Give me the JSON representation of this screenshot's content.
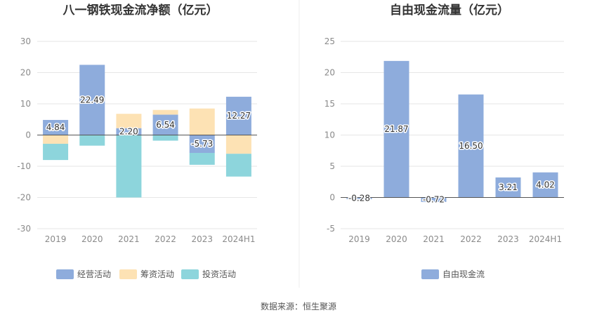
{
  "source": "数据来源：恒生聚源",
  "chart_data": [
    {
      "type": "bar",
      "stacked": true,
      "title": "八一钢铁现金流净额（亿元）",
      "categories": [
        "2019",
        "2020",
        "2021",
        "2022",
        "2023",
        "2024H1"
      ],
      "ylim": [
        -30,
        30
      ],
      "yticks": [
        30,
        20,
        10,
        0,
        -10,
        -20,
        -30
      ],
      "grid": true,
      "legend_position": "bottom",
      "series": [
        {
          "name": "经营活动",
          "color": "#8eacdc",
          "values": [
            4.84,
            22.49,
            2.2,
            6.54,
            -5.73,
            12.27
          ],
          "labeled": true
        },
        {
          "name": "筹资活动",
          "color": "#fde2b4",
          "values": [
            -2.8,
            0,
            4.6,
            1.5,
            8.5,
            -6.0
          ],
          "labeled": false
        },
        {
          "name": "投资活动",
          "color": "#8dd5dc",
          "values": [
            -5.2,
            -3.4,
            -20.0,
            -1.8,
            -3.8,
            -7.3
          ],
          "labeled": false
        }
      ],
      "labels": [
        "4.84",
        "22.49",
        "2.20",
        "6.54",
        "-5.73",
        "12.27"
      ]
    },
    {
      "type": "bar",
      "title": "自由现金流量（亿元）",
      "categories": [
        "2019",
        "2020",
        "2021",
        "2022",
        "2023",
        "2024H1"
      ],
      "ylim": [
        -5,
        25
      ],
      "yticks": [
        25,
        20,
        15,
        10,
        5,
        0,
        -5
      ],
      "grid": true,
      "legend_position": "bottom",
      "series": [
        {
          "name": "自由现金流",
          "color": "#8eacdc",
          "values": [
            -0.28,
            21.87,
            -0.72,
            16.5,
            3.21,
            4.02
          ],
          "labeled": true
        }
      ],
      "labels": [
        "-0.28",
        "21.87",
        "-0.72",
        "16.50",
        "3.21",
        "4.02"
      ]
    }
  ]
}
